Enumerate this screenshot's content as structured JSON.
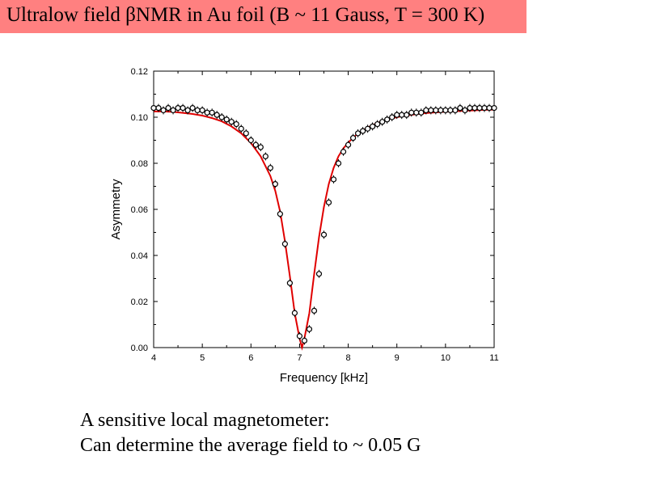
{
  "slide": {
    "title": "Ultralow field βNMR in Au foil (B ~ 11 Gauss, T = 300 K)",
    "caption_line1": "A sensitive local magnetometer:",
    "caption_line2": "Can determine the average field to ~ 0.05 G",
    "title_bg": "#ff8080"
  },
  "chart_data": {
    "type": "scatter",
    "title": "",
    "xlabel": "Frequency [kHz]",
    "ylabel": "Asymmetry",
    "xlim": [
      4,
      11
    ],
    "ylim": [
      0,
      0.12
    ],
    "x_ticks": [
      "4",
      "5",
      "6",
      "7",
      "8",
      "9",
      "10",
      "11"
    ],
    "y_ticks": [
      "0.00",
      "0.02",
      "0.04",
      "0.06",
      "0.08",
      "0.10",
      "0.12"
    ],
    "grid": false,
    "fit_color": "#e00000",
    "marker_color": "#000000",
    "series": [
      {
        "kind": "data",
        "x": [
          4.0,
          4.1,
          4.2,
          4.3,
          4.4,
          4.5,
          4.6,
          4.7,
          4.8,
          4.9,
          5.0,
          5.1,
          5.2,
          5.3,
          5.4,
          5.5,
          5.6,
          5.7,
          5.8,
          5.9,
          6.0,
          6.1,
          6.2,
          6.3,
          6.4,
          6.5,
          6.6,
          6.7,
          6.8,
          6.9,
          7.0,
          7.1,
          7.2,
          7.3,
          7.4,
          7.5,
          7.6,
          7.7,
          7.8,
          7.9,
          8.0,
          8.1,
          8.2,
          8.3,
          8.4,
          8.5,
          8.6,
          8.7,
          8.8,
          8.9,
          9.0,
          9.1,
          9.2,
          9.3,
          9.4,
          9.5,
          9.6,
          9.7,
          9.8,
          9.9,
          10.0,
          10.1,
          10.2,
          10.3,
          10.4,
          10.5,
          10.6,
          10.7,
          10.8,
          10.9,
          11.0
        ],
        "y": [
          0.104,
          0.104,
          0.103,
          0.104,
          0.103,
          0.104,
          0.104,
          0.103,
          0.104,
          0.103,
          0.103,
          0.102,
          0.102,
          0.101,
          0.1,
          0.099,
          0.098,
          0.097,
          0.095,
          0.093,
          0.09,
          0.088,
          0.087,
          0.083,
          0.078,
          0.071,
          0.058,
          0.045,
          0.028,
          0.015,
          0.005,
          0.003,
          0.008,
          0.016,
          0.032,
          0.049,
          0.063,
          0.073,
          0.08,
          0.085,
          0.088,
          0.091,
          0.093,
          0.094,
          0.095,
          0.096,
          0.097,
          0.098,
          0.099,
          0.1,
          0.101,
          0.101,
          0.101,
          0.102,
          0.102,
          0.102,
          0.103,
          0.103,
          0.103,
          0.103,
          0.103,
          0.103,
          0.103,
          0.104,
          0.103,
          0.104,
          0.104,
          0.104,
          0.104,
          0.104,
          0.104
        ]
      },
      {
        "kind": "fit",
        "x": [
          4.0,
          4.2,
          4.4,
          4.6,
          4.8,
          5.0,
          5.2,
          5.4,
          5.6,
          5.8,
          6.0,
          6.2,
          6.4,
          6.5,
          6.6,
          6.7,
          6.8,
          6.9,
          7.0,
          7.05,
          7.1,
          7.2,
          7.3,
          7.4,
          7.5,
          7.6,
          7.7,
          7.8,
          7.9,
          8.0,
          8.2,
          8.4,
          8.6,
          8.8,
          9.0,
          9.2,
          9.4,
          9.6,
          9.8,
          10.0,
          10.2,
          10.4,
          10.6,
          10.8,
          11.0
        ],
        "y": [
          0.1025,
          0.1025,
          0.1023,
          0.1019,
          0.1014,
          0.1007,
          0.0996,
          0.0982,
          0.096,
          0.093,
          0.0888,
          0.083,
          0.0745,
          0.068,
          0.059,
          0.046,
          0.031,
          0.015,
          0.004,
          0.0,
          0.004,
          0.015,
          0.032,
          0.048,
          0.061,
          0.071,
          0.078,
          0.083,
          0.0865,
          0.089,
          0.093,
          0.0955,
          0.0975,
          0.099,
          0.1,
          0.1008,
          0.1013,
          0.1018,
          0.1021,
          0.1024,
          0.1026,
          0.1028,
          0.103,
          0.1032,
          0.1033
        ]
      }
    ]
  }
}
